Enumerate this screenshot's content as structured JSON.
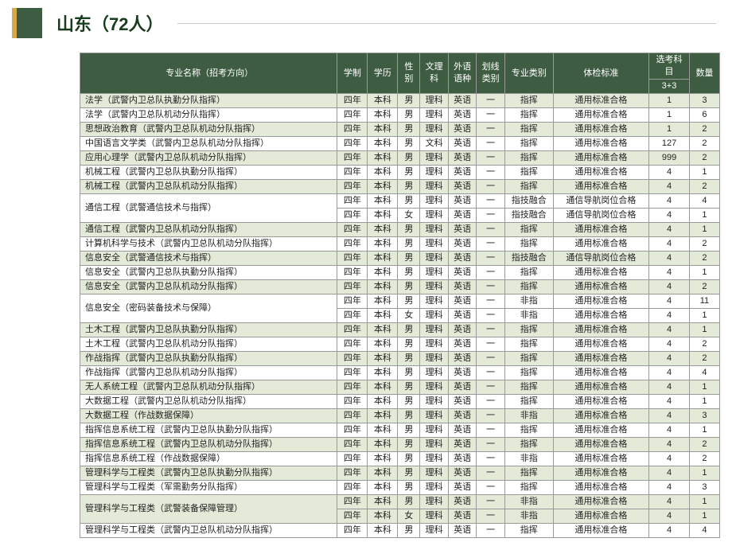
{
  "header": {
    "title": "山东（72人）"
  },
  "columns": {
    "name": "专业名称（招考方向）",
    "xuezhi": "学制",
    "xueli": "学历",
    "xingbie": "性别",
    "wenli": "文理科",
    "waiyu": "外语语种",
    "huaxian": "划线类别",
    "zhuanye": "专业类别",
    "tijian": "体检标准",
    "xuanke_top": "选考科目",
    "xuanke_sub": "3+3",
    "shuliang": "数量"
  },
  "rows": [
    {
      "name": "法学（武警内卫总队执勤分队指挥）",
      "xz": "四年",
      "xl": "本科",
      "xb": "男",
      "wl": "理科",
      "wy": "英语",
      "hx": "一",
      "zy": "指挥",
      "tj": "通用标准合格",
      "xk": "1",
      "sl": "3"
    },
    {
      "name": "法学（武警内卫总队机动分队指挥）",
      "xz": "四年",
      "xl": "本科",
      "xb": "男",
      "wl": "理科",
      "wy": "英语",
      "hx": "一",
      "zy": "指挥",
      "tj": "通用标准合格",
      "xk": "1",
      "sl": "6"
    },
    {
      "name": "思想政治教育（武警内卫总队机动分队指挥）",
      "xz": "四年",
      "xl": "本科",
      "xb": "男",
      "wl": "理科",
      "wy": "英语",
      "hx": "一",
      "zy": "指挥",
      "tj": "通用标准合格",
      "xk": "1",
      "sl": "2"
    },
    {
      "name": "中国语言文学类（武警内卫总队机动分队指挥）",
      "xz": "四年",
      "xl": "本科",
      "xb": "男",
      "wl": "文科",
      "wy": "英语",
      "hx": "一",
      "zy": "指挥",
      "tj": "通用标准合格",
      "xk": "127",
      "sl": "2"
    },
    {
      "name": "应用心理学（武警内卫总队机动分队指挥）",
      "xz": "四年",
      "xl": "本科",
      "xb": "男",
      "wl": "理科",
      "wy": "英语",
      "hx": "一",
      "zy": "指挥",
      "tj": "通用标准合格",
      "xk": "999",
      "sl": "2"
    },
    {
      "name": "机械工程（武警内卫总队执勤分队指挥）",
      "xz": "四年",
      "xl": "本科",
      "xb": "男",
      "wl": "理科",
      "wy": "英语",
      "hx": "一",
      "zy": "指挥",
      "tj": "通用标准合格",
      "xk": "4",
      "sl": "1"
    },
    {
      "name": "机械工程（武警内卫总队机动分队指挥）",
      "xz": "四年",
      "xl": "本科",
      "xb": "男",
      "wl": "理科",
      "wy": "英语",
      "hx": "一",
      "zy": "指挥",
      "tj": "通用标准合格",
      "xk": "4",
      "sl": "2"
    },
    {
      "name": "通信工程（武警通信技术与指挥）",
      "rowspan": 2,
      "xz": "四年",
      "xl": "本科",
      "xb": "男",
      "wl": "理科",
      "wy": "英语",
      "hx": "一",
      "zy": "指技融合",
      "tj": "通信导航岗位合格",
      "xk": "4",
      "sl": "4"
    },
    {
      "sub": true,
      "xz": "四年",
      "xl": "本科",
      "xb": "女",
      "wl": "理科",
      "wy": "英语",
      "hx": "一",
      "zy": "指技融合",
      "tj": "通信导航岗位合格",
      "xk": "4",
      "sl": "1"
    },
    {
      "name": "通信工程（武警内卫总队机动分队指挥）",
      "xz": "四年",
      "xl": "本科",
      "xb": "男",
      "wl": "理科",
      "wy": "英语",
      "hx": "一",
      "zy": "指挥",
      "tj": "通用标准合格",
      "xk": "4",
      "sl": "1"
    },
    {
      "name": "计算机科学与技术（武警内卫总队机动分队指挥）",
      "xz": "四年",
      "xl": "本科",
      "xb": "男",
      "wl": "理科",
      "wy": "英语",
      "hx": "一",
      "zy": "指挥",
      "tj": "通用标准合格",
      "xk": "4",
      "sl": "2"
    },
    {
      "name": "信息安全（武警通信技术与指挥）",
      "xz": "四年",
      "xl": "本科",
      "xb": "男",
      "wl": "理科",
      "wy": "英语",
      "hx": "一",
      "zy": "指技融合",
      "tj": "通信导航岗位合格",
      "xk": "4",
      "sl": "2"
    },
    {
      "name": "信息安全（武警内卫总队执勤分队指挥）",
      "xz": "四年",
      "xl": "本科",
      "xb": "男",
      "wl": "理科",
      "wy": "英语",
      "hx": "一",
      "zy": "指挥",
      "tj": "通用标准合格",
      "xk": "4",
      "sl": "1"
    },
    {
      "name": "信息安全（武警内卫总队机动分队指挥）",
      "xz": "四年",
      "xl": "本科",
      "xb": "男",
      "wl": "理科",
      "wy": "英语",
      "hx": "一",
      "zy": "指挥",
      "tj": "通用标准合格",
      "xk": "4",
      "sl": "2"
    },
    {
      "name": "信息安全（密码装备技术与保障）",
      "rowspan": 2,
      "xz": "四年",
      "xl": "本科",
      "xb": "男",
      "wl": "理科",
      "wy": "英语",
      "hx": "一",
      "zy": "非指",
      "tj": "通用标准合格",
      "xk": "4",
      "sl": "11"
    },
    {
      "sub": true,
      "xz": "四年",
      "xl": "本科",
      "xb": "女",
      "wl": "理科",
      "wy": "英语",
      "hx": "一",
      "zy": "非指",
      "tj": "通用标准合格",
      "xk": "4",
      "sl": "1"
    },
    {
      "name": "土木工程（武警内卫总队执勤分队指挥）",
      "xz": "四年",
      "xl": "本科",
      "xb": "男",
      "wl": "理科",
      "wy": "英语",
      "hx": "一",
      "zy": "指挥",
      "tj": "通用标准合格",
      "xk": "4",
      "sl": "1"
    },
    {
      "name": "土木工程（武警内卫总队机动分队指挥）",
      "xz": "四年",
      "xl": "本科",
      "xb": "男",
      "wl": "理科",
      "wy": "英语",
      "hx": "一",
      "zy": "指挥",
      "tj": "通用标准合格",
      "xk": "4",
      "sl": "2"
    },
    {
      "name": "作战指挥（武警内卫总队执勤分队指挥）",
      "xz": "四年",
      "xl": "本科",
      "xb": "男",
      "wl": "理科",
      "wy": "英语",
      "hx": "一",
      "zy": "指挥",
      "tj": "通用标准合格",
      "xk": "4",
      "sl": "2"
    },
    {
      "name": "作战指挥（武警内卫总队机动分队指挥）",
      "xz": "四年",
      "xl": "本科",
      "xb": "男",
      "wl": "理科",
      "wy": "英语",
      "hx": "一",
      "zy": "指挥",
      "tj": "通用标准合格",
      "xk": "4",
      "sl": "4"
    },
    {
      "name": "无人系统工程（武警内卫总队机动分队指挥）",
      "xz": "四年",
      "xl": "本科",
      "xb": "男",
      "wl": "理科",
      "wy": "英语",
      "hx": "一",
      "zy": "指挥",
      "tj": "通用标准合格",
      "xk": "4",
      "sl": "1"
    },
    {
      "name": "大数据工程（武警内卫总队机动分队指挥）",
      "xz": "四年",
      "xl": "本科",
      "xb": "男",
      "wl": "理科",
      "wy": "英语",
      "hx": "一",
      "zy": "指挥",
      "tj": "通用标准合格",
      "xk": "4",
      "sl": "1"
    },
    {
      "name": "大数据工程（作战数据保障）",
      "xz": "四年",
      "xl": "本科",
      "xb": "男",
      "wl": "理科",
      "wy": "英语",
      "hx": "一",
      "zy": "非指",
      "tj": "通用标准合格",
      "xk": "4",
      "sl": "3"
    },
    {
      "name": "指挥信息系统工程（武警内卫总队执勤分队指挥）",
      "xz": "四年",
      "xl": "本科",
      "xb": "男",
      "wl": "理科",
      "wy": "英语",
      "hx": "一",
      "zy": "指挥",
      "tj": "通用标准合格",
      "xk": "4",
      "sl": "1"
    },
    {
      "name": "指挥信息系统工程（武警内卫总队机动分队指挥）",
      "xz": "四年",
      "xl": "本科",
      "xb": "男",
      "wl": "理科",
      "wy": "英语",
      "hx": "一",
      "zy": "指挥",
      "tj": "通用标准合格",
      "xk": "4",
      "sl": "2"
    },
    {
      "name": "指挥信息系统工程（作战数据保障）",
      "xz": "四年",
      "xl": "本科",
      "xb": "男",
      "wl": "理科",
      "wy": "英语",
      "hx": "一",
      "zy": "非指",
      "tj": "通用标准合格",
      "xk": "4",
      "sl": "2"
    },
    {
      "name": "管理科学与工程类（武警内卫总队执勤分队指挥）",
      "xz": "四年",
      "xl": "本科",
      "xb": "男",
      "wl": "理科",
      "wy": "英语",
      "hx": "一",
      "zy": "指挥",
      "tj": "通用标准合格",
      "xk": "4",
      "sl": "1"
    },
    {
      "name": "管理科学与工程类（军需勤务分队指挥）",
      "xz": "四年",
      "xl": "本科",
      "xb": "男",
      "wl": "理科",
      "wy": "英语",
      "hx": "一",
      "zy": "指挥",
      "tj": "通用标准合格",
      "xk": "4",
      "sl": "3"
    },
    {
      "name": "管理科学与工程类（武警装备保障管理）",
      "rowspan": 2,
      "xz": "四年",
      "xl": "本科",
      "xb": "男",
      "wl": "理科",
      "wy": "英语",
      "hx": "一",
      "zy": "非指",
      "tj": "通用标准合格",
      "xk": "4",
      "sl": "1"
    },
    {
      "sub": true,
      "xz": "四年",
      "xl": "本科",
      "xb": "女",
      "wl": "理科",
      "wy": "英语",
      "hx": "一",
      "zy": "非指",
      "tj": "通用标准合格",
      "xk": "4",
      "sl": "1"
    },
    {
      "name": "管理科学与工程类（武警内卫总队机动分队指挥）",
      "xz": "四年",
      "xl": "本科",
      "xb": "男",
      "wl": "理科",
      "wy": "英语",
      "hx": "一",
      "zy": "指挥",
      "tj": "通用标准合格",
      "xk": "4",
      "sl": "4"
    }
  ],
  "colors": {
    "header_bg": "#3e5c42",
    "accent": "#d4a948",
    "row_even": "#e3ead8",
    "row_odd": "#ffffff",
    "border": "#999999"
  }
}
